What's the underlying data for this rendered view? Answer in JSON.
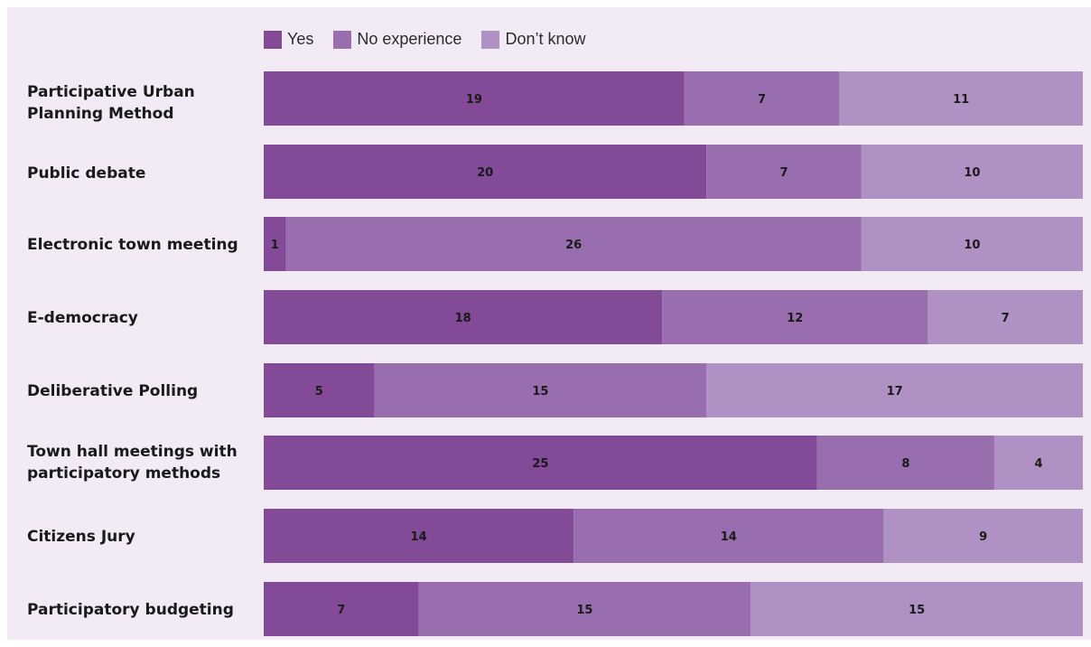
{
  "colors": {
    "background": "#f2ebf5",
    "yes": "#824a97",
    "no_experience": "#996eae",
    "dont_know": "#b091c4"
  },
  "legend": {
    "items": [
      {
        "label": "Yes",
        "color": "#824a97"
      },
      {
        "label": "No experience",
        "color": "#996eae"
      },
      {
        "label": "Don’t know",
        "color": "#b091c4"
      }
    ]
  },
  "chart_data": {
    "type": "bar",
    "orientation": "horizontal",
    "stacked": true,
    "title": "",
    "xlabel": "",
    "ylabel": "",
    "grid": false,
    "legend_position": "top",
    "categories": [
      "Participative Urban Planning Method",
      "Public debate",
      "Electronic town meeting",
      "E-democracy",
      "Deliberative Polling",
      "Town hall meetings with participatory methods",
      "Citizens Jury",
      "Participatory budgeting"
    ],
    "series": [
      {
        "name": "Yes",
        "values": [
          19,
          20,
          1,
          18,
          5,
          25,
          14,
          7
        ]
      },
      {
        "name": "No experience",
        "values": [
          7,
          7,
          26,
          12,
          15,
          8,
          14,
          15
        ]
      },
      {
        "name": "Don’t know",
        "values": [
          11,
          10,
          10,
          7,
          17,
          4,
          9,
          15
        ]
      }
    ]
  }
}
